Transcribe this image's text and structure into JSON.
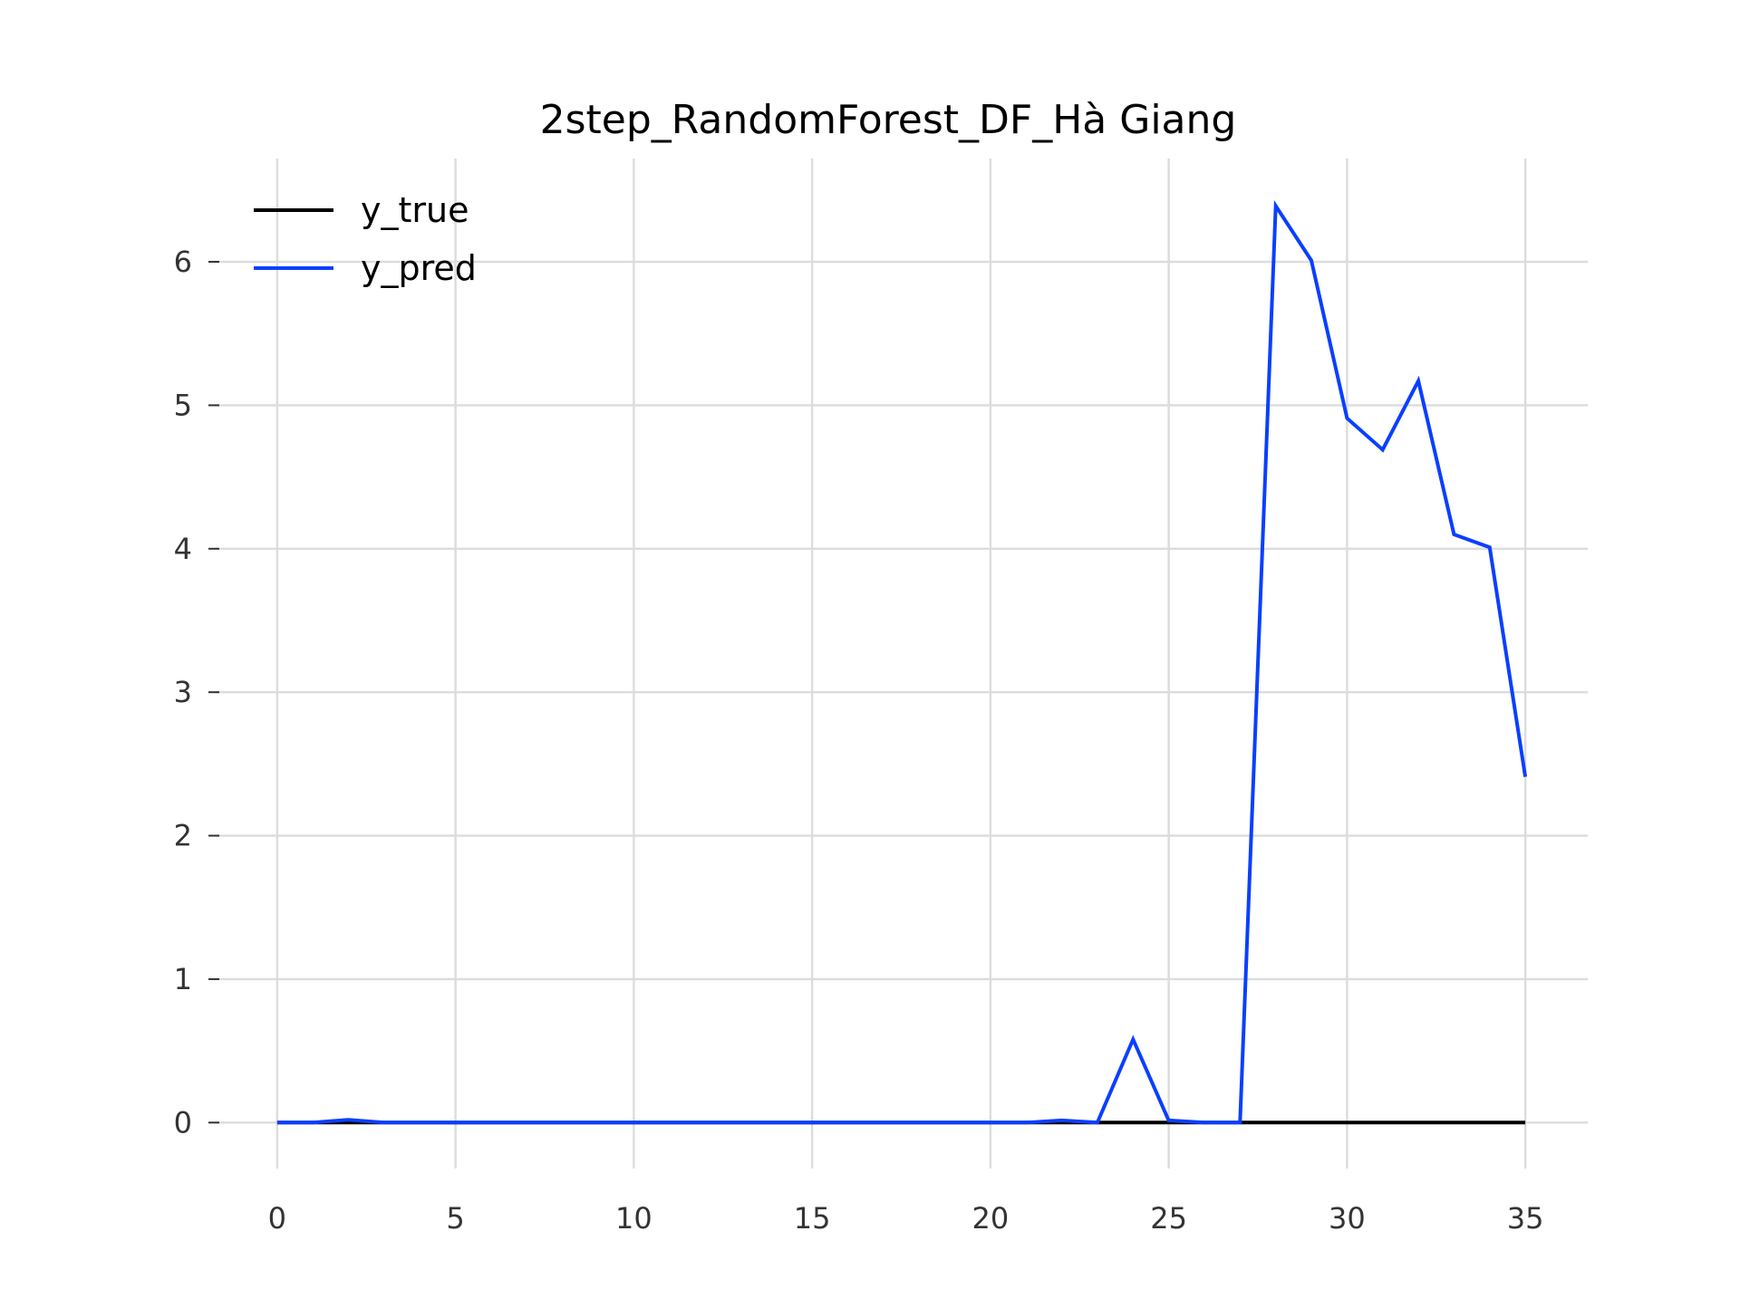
{
  "chart_data": {
    "type": "line",
    "title": "2step_RandomForest_DF_Hà Giang",
    "xlabel": "",
    "ylabel": "",
    "xlim": [
      -1.75,
      36.75
    ],
    "ylim": [
      -0.32,
      6.72
    ],
    "xticks": [
      0,
      5,
      10,
      15,
      20,
      25,
      30,
      35
    ],
    "xtick_labels": [
      "0",
      "5",
      "10",
      "15",
      "20",
      "25",
      "30",
      "35"
    ],
    "yticks": [
      0,
      1,
      2,
      3,
      4,
      5,
      6
    ],
    "ytick_labels": [
      "0",
      "1",
      "2",
      "3",
      "4",
      "5",
      "6"
    ],
    "grid": true,
    "legend_position": "upper-left",
    "x": [
      0,
      1,
      2,
      3,
      4,
      5,
      6,
      7,
      8,
      9,
      10,
      11,
      12,
      13,
      14,
      15,
      16,
      17,
      18,
      19,
      20,
      21,
      22,
      23,
      24,
      25,
      26,
      27,
      28,
      29,
      30,
      31,
      32,
      33,
      34,
      35
    ],
    "series": [
      {
        "name": "y_true",
        "color": "#000000",
        "values": [
          0,
          0,
          0,
          0,
          0,
          0,
          0,
          0,
          0,
          0,
          0,
          0,
          0,
          0,
          0,
          0,
          0,
          0,
          0,
          0,
          0,
          0,
          0,
          0,
          0,
          0,
          0,
          0,
          0,
          0,
          0,
          0,
          0,
          0,
          0,
          0
        ]
      },
      {
        "name": "y_pred",
        "color": "#0a3fff",
        "values": [
          0,
          0,
          0.02,
          0,
          0,
          0,
          0,
          0,
          0,
          0,
          0,
          0,
          0,
          0,
          0,
          0,
          0,
          0,
          0,
          0,
          0,
          0,
          0.015,
          0,
          0.58,
          0.015,
          0,
          0,
          6.39,
          6.01,
          4.91,
          4.69,
          5.17,
          4.1,
          4.01,
          2.41
        ]
      }
    ]
  }
}
